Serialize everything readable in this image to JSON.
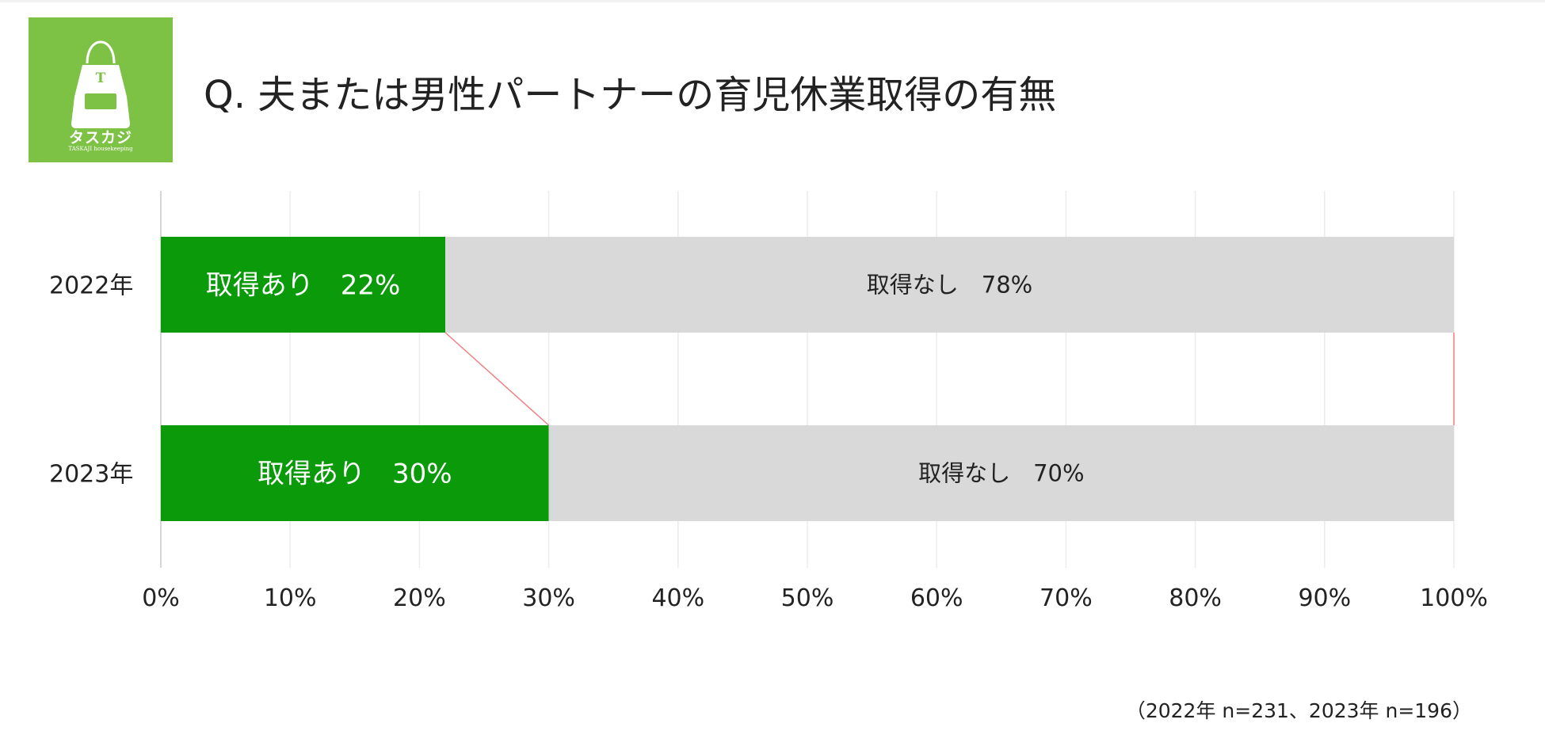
{
  "header": {
    "title": "Q. 夫または男性パートナーの育児休業取得の有無"
  },
  "logo": {
    "brand_jp": "タスカジ",
    "brand_en": "TASKAJI  housekeeping",
    "apron_letter": "T",
    "colors": {
      "background": "#7dc145",
      "apron": "#ffffff"
    }
  },
  "chart_data": {
    "type": "bar",
    "orientation": "horizontal",
    "stacked": "percent",
    "categories": [
      "2022年",
      "2023年"
    ],
    "series": [
      {
        "name": "取得あり",
        "values": [
          22,
          30
        ],
        "color": "#0a9a0a",
        "label_color": "#ffffff",
        "labels": [
          "取得あり　22%",
          "取得あり　30%"
        ]
      },
      {
        "name": "取得なし",
        "values": [
          78,
          70
        ],
        "color": "#d9d9d9",
        "label_color": "#222222",
        "labels": [
          "取得なし　78%",
          "取得なし　70%"
        ]
      }
    ],
    "xlim": [
      0,
      100
    ],
    "x_ticks": [
      "0%",
      "10%",
      "20%",
      "30%",
      "40%",
      "50%",
      "60%",
      "70%",
      "80%",
      "90%",
      "100%"
    ],
    "grid": true,
    "series_lines": true,
    "series_line_color": "#f08080",
    "note": "（2022年 n=231、2023年 n=196）"
  }
}
